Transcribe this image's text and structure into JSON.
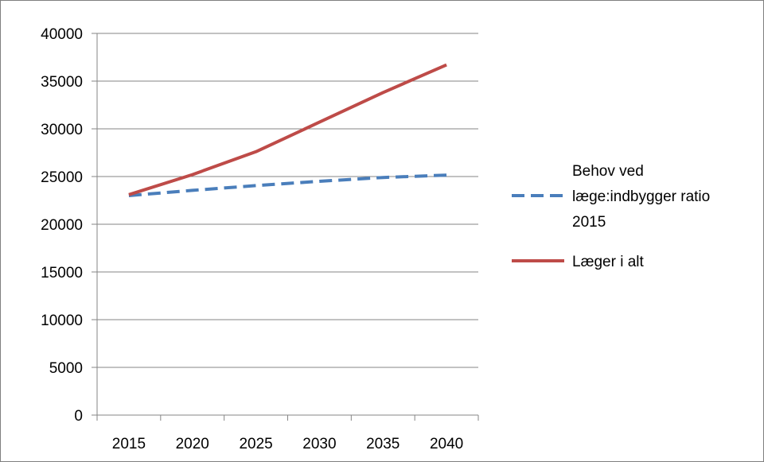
{
  "chart_data": {
    "type": "line",
    "x": [
      2015,
      2020,
      2025,
      2030,
      2035,
      2040
    ],
    "series": [
      {
        "name": "Behov ved læge:indbygger ratio 2015",
        "name_lines": [
          "Behov ved",
          "læge:indbygger ratio",
          "2015"
        ],
        "values": [
          23000,
          23550,
          24050,
          24500,
          24900,
          25150
        ],
        "color": "#4a7ebb",
        "style": "dashed"
      },
      {
        "name": "Læger i alt",
        "name_lines": [
          "Læger i alt"
        ],
        "values": [
          23100,
          25200,
          27600,
          30700,
          33800,
          36700
        ],
        "color": "#be4b48",
        "style": "solid"
      }
    ],
    "yticks": [
      "0",
      "5000",
      "10000",
      "15000",
      "20000",
      "25000",
      "30000",
      "35000",
      "40000"
    ],
    "xticks": [
      "2015",
      "2020",
      "2025",
      "2030",
      "2035",
      "2040"
    ],
    "ylim": [
      0,
      40000
    ],
    "grid": "horizontal",
    "legend": "right",
    "title": "",
    "xlabel": "",
    "ylabel": ""
  }
}
